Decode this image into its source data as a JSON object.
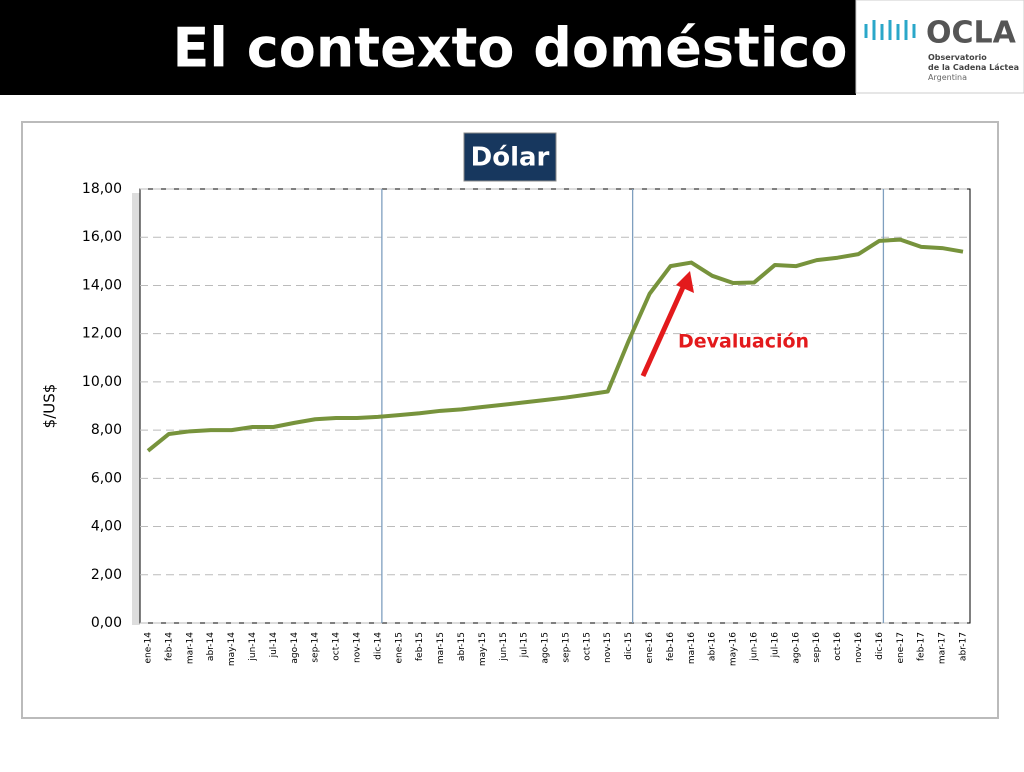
{
  "header": {
    "title": "El contexto doméstico",
    "logo_name": "OCLA",
    "logo_lines": [
      "Observatorio",
      "de la Cadena Láctea",
      "Argentina"
    ]
  },
  "chart_data": {
    "type": "line",
    "title": "Dólar",
    "y_label": "$/US$",
    "annotation": "Devaluación",
    "categories": [
      "ene-14",
      "feb-14",
      "mar-14",
      "abr-14",
      "may-14",
      "jun-14",
      "jul-14",
      "ago-14",
      "sep-14",
      "oct-14",
      "nov-14",
      "dic-14",
      "ene-15",
      "feb-15",
      "mar-15",
      "abr-15",
      "may-15",
      "jun-15",
      "jul-15",
      "ago-15",
      "sep-15",
      "oct-15",
      "nov-15",
      "dic-15",
      "ene-16",
      "feb-16",
      "mar-16",
      "abr-16",
      "may-16",
      "jun-16",
      "jul-16",
      "ago-16",
      "sep-16",
      "oct-16",
      "nov-16",
      "dic-16",
      "ene-17",
      "feb-17",
      "mar-17",
      "abr-17"
    ],
    "series": [
      {
        "name": "Dólar",
        "color": "#77933c",
        "values": [
          7.14,
          7.84,
          7.95,
          8.0,
          8.0,
          8.13,
          8.13,
          8.3,
          8.45,
          8.5,
          8.5,
          8.55,
          8.62,
          8.7,
          8.8,
          8.86,
          8.96,
          9.05,
          9.15,
          9.25,
          9.35,
          9.47,
          9.6,
          11.7,
          13.65,
          14.8,
          14.95,
          14.4,
          14.1,
          14.12,
          14.85,
          14.8,
          15.05,
          15.15,
          15.3,
          15.85,
          15.9,
          15.6,
          15.55,
          15.4
        ]
      }
    ],
    "ylim": [
      0,
      18
    ],
    "yticks": [
      {
        "value": 0,
        "label": "0,00"
      },
      {
        "value": 2,
        "label": "2,00"
      },
      {
        "value": 4,
        "label": "4,00"
      },
      {
        "value": 6,
        "label": "6,00"
      },
      {
        "value": 8,
        "label": "8,00"
      },
      {
        "value": 10,
        "label": "10,00"
      },
      {
        "value": 12,
        "label": "12,00"
      },
      {
        "value": 14,
        "label": "14,00"
      },
      {
        "value": 16,
        "label": "16,00"
      },
      {
        "value": 18,
        "label": "18,00"
      }
    ],
    "grid": true
  }
}
